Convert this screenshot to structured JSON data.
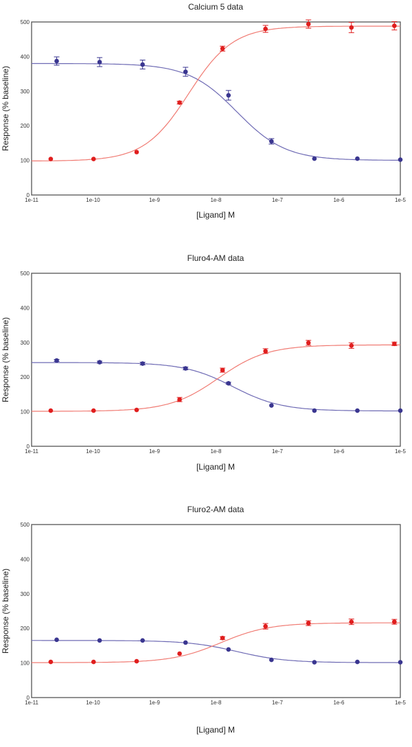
{
  "chart_data": [
    {
      "type": "scatter",
      "title": "Calcium 5 data",
      "xlabel": "[Ligand] M",
      "ylabel": "Response (% baseline)",
      "xscale": "log",
      "xlim": [
        1e-11,
        1e-05
      ],
      "ylim": [
        0,
        500
      ],
      "xticks": [
        "1e-11",
        "1e-10",
        "1e-9",
        "1e-8",
        "1e-7",
        "1e-6",
        "1e-5"
      ],
      "yticks": [
        "0",
        "100",
        "200",
        "300",
        "400",
        "500"
      ],
      "grid": false,
      "series": [
        {
          "color": "#3a3690",
          "curve_color": "#6e6ab4",
          "x": [
            2.56e-11,
            1.28e-10,
            6.4e-10,
            3.2e-09,
            1.6e-08,
            8e-08,
            4e-07,
            2e-06,
            1e-05
          ],
          "y": [
            387,
            384,
            377,
            356,
            288,
            155,
            105,
            105,
            102
          ],
          "err": [
            12,
            13,
            13,
            13,
            14,
            8,
            0,
            0,
            0
          ],
          "fit": {
            "bottom": 100,
            "top": 380,
            "ec50": 2.2e-08,
            "hill": 1.1
          }
        },
        {
          "color": "#e01e1e",
          "curve_color": "#f07a72",
          "x": [
            2.05e-11,
            1.02e-10,
            5.12e-10,
            2.56e-09,
            1.28e-08,
            6.4e-08,
            3.2e-07,
            1.6e-06,
            8e-06
          ],
          "y": [
            104,
            104,
            124,
            267,
            423,
            480,
            494,
            484,
            489
          ],
          "err": [
            0,
            0,
            0,
            4,
            7,
            10,
            12,
            15,
            12
          ],
          "fit": {
            "bottom": 98,
            "top": 488,
            "ec50": 3.6e-09,
            "hill": 1.2
          }
        }
      ]
    },
    {
      "type": "scatter",
      "title": "Fluro4-AM data",
      "xlabel": "[Ligand] M",
      "ylabel": "Response (% baseline)",
      "xscale": "log",
      "xlim": [
        1e-11,
        1e-05
      ],
      "ylim": [
        0,
        500
      ],
      "xticks": [
        "1e-11",
        "1e-10",
        "1e-9",
        "1e-8",
        "1e-7",
        "1e-6",
        "1e-5"
      ],
      "yticks": [
        "0",
        "100",
        "200",
        "300",
        "400",
        "500"
      ],
      "grid": false,
      "series": [
        {
          "color": "#3a3690",
          "curve_color": "#6e6ab4",
          "x": [
            2.56e-11,
            1.28e-10,
            6.4e-10,
            3.2e-09,
            1.6e-08,
            8e-08,
            4e-07,
            2e-06,
            1e-05
          ],
          "y": [
            248,
            243,
            239,
            225,
            182,
            118,
            103,
            103,
            103
          ],
          "err": [
            3,
            3,
            4,
            4,
            3,
            0,
            0,
            0,
            0
          ],
          "fit": {
            "bottom": 102,
            "top": 242,
            "ec50": 1.9e-08,
            "hill": 1.1
          }
        },
        {
          "color": "#e01e1e",
          "curve_color": "#f07a72",
          "x": [
            2.05e-11,
            1.02e-10,
            5.12e-10,
            2.56e-09,
            1.28e-08,
            6.4e-08,
            3.2e-07,
            1.6e-06,
            8e-06
          ],
          "y": [
            103,
            103,
            105,
            135,
            220,
            275,
            299,
            291,
            296
          ],
          "err": [
            0,
            0,
            0,
            6,
            6,
            7,
            7,
            8,
            5
          ],
          "fit": {
            "bottom": 101,
            "top": 293,
            "ec50": 1.1e-08,
            "hill": 1.1
          }
        }
      ]
    },
    {
      "type": "scatter",
      "title": "Fluro2-AM data",
      "xlabel": "[Ligand] M",
      "ylabel": "Response (% baseline)",
      "xscale": "log",
      "xlim": [
        1e-11,
        1e-05
      ],
      "ylim": [
        0,
        500
      ],
      "xticks": [
        "1e-11",
        "1e-10",
        "1e-9",
        "1e-8",
        "1e-7",
        "1e-6",
        "1e-5"
      ],
      "yticks": [
        "0",
        "100",
        "200",
        "300",
        "400",
        "500"
      ],
      "grid": false,
      "series": [
        {
          "color": "#3a3690",
          "curve_color": "#6e6ab4",
          "x": [
            2.56e-11,
            1.28e-10,
            6.4e-10,
            3.2e-09,
            1.6e-08,
            8e-08,
            4e-07,
            2e-06,
            1e-05
          ],
          "y": [
            167,
            165,
            165,
            159,
            139,
            109,
            102,
            103,
            102
          ],
          "err": [
            0,
            0,
            0,
            0,
            0,
            0,
            0,
            0,
            0
          ],
          "fit": {
            "bottom": 101,
            "top": 165,
            "ec50": 2.2e-08,
            "hill": 1.1
          }
        },
        {
          "color": "#e01e1e",
          "curve_color": "#f07a72",
          "x": [
            2.05e-11,
            1.02e-10,
            5.12e-10,
            2.56e-09,
            1.28e-08,
            6.4e-08,
            3.2e-07,
            1.6e-06,
            8e-06
          ],
          "y": [
            103,
            103,
            105,
            127,
            172,
            206,
            215,
            219,
            219
          ],
          "err": [
            0,
            0,
            0,
            0,
            4,
            8,
            7,
            8,
            7
          ],
          "fit": {
            "bottom": 101,
            "top": 216,
            "ec50": 1.2e-08,
            "hill": 1.1
          }
        }
      ]
    }
  ]
}
